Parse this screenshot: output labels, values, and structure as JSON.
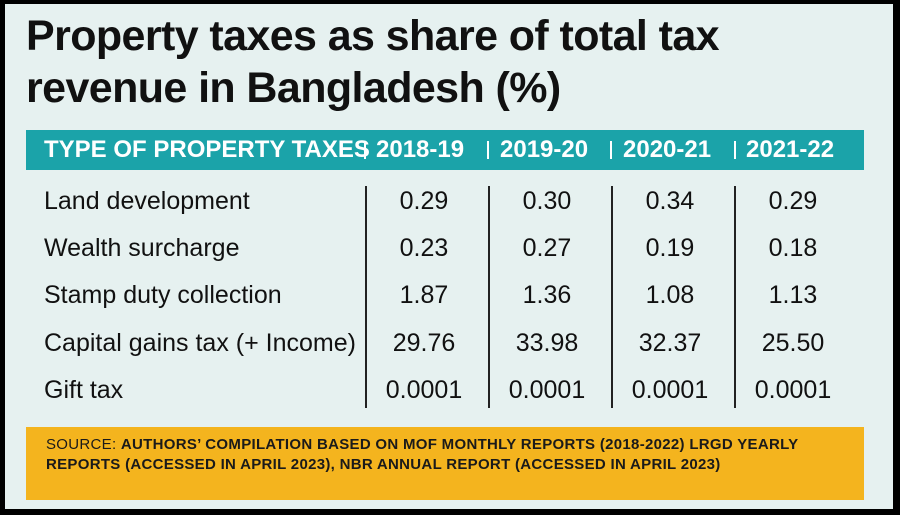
{
  "title_line1": "Property taxes as share of total tax",
  "title_line2": "revenue in Bangladesh (%)",
  "chart_data": {
    "type": "table",
    "title": "Property taxes as share of total tax revenue in Bangladesh (%)",
    "columns": [
      "TYPE OF PROPERTY TAXES",
      "2018-19",
      "2019-20",
      "2020-21",
      "2021-22"
    ],
    "rows": [
      {
        "label": "Land development",
        "values": [
          "0.29",
          "0.30",
          "0.34",
          "0.29"
        ]
      },
      {
        "label": "Wealth surcharge",
        "values": [
          "0.23",
          "0.27",
          "0.19",
          "0.18"
        ]
      },
      {
        "label": "Stamp duty collection",
        "values": [
          "1.87",
          "1.36",
          "1.08",
          "1.13"
        ]
      },
      {
        "label": "Capital gains tax (+ Income)",
        "values": [
          "29.76",
          "33.98",
          "32.37",
          "25.50"
        ]
      },
      {
        "label": "Gift tax",
        "values": [
          "0.0001",
          "0.0001",
          "0.0001",
          "0.0001"
        ]
      }
    ]
  },
  "source": {
    "prefix": "Source: ",
    "text": "Authors’ compilation based on MoF monthly reports (2018-2022) LRGD yearly reports (accessed in April 2023), NBR annual report (accessed in April 2023)"
  },
  "colors": {
    "background": "#e6f1f0",
    "header": "#1ba3a9",
    "source_box": "#f4b41e"
  }
}
